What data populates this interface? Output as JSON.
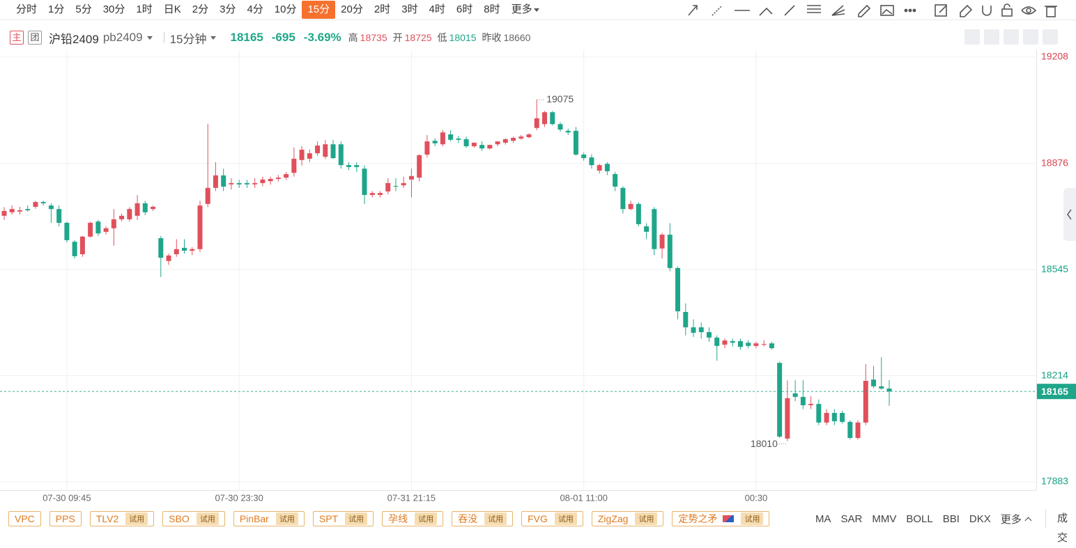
{
  "toolbar": {
    "periods": [
      "分时",
      "1分",
      "5分",
      "30分",
      "1时",
      "日K",
      "2分",
      "3分",
      "4分",
      "10分",
      "15分",
      "20分",
      "2时",
      "3时",
      "4时",
      "6时",
      "8时",
      "更多"
    ],
    "active": 10
  },
  "header": {
    "badges": [
      "主",
      "团"
    ],
    "name": "沪铅2409",
    "code": "pb2409",
    "period": "15分钟",
    "price": 18165,
    "change": -695,
    "change_pct": "-3.69%",
    "stats": [
      {
        "label": "高",
        "value": 18735
      },
      {
        "label": "开",
        "value": 18725
      },
      {
        "label": "低",
        "value": 18015
      }
    ],
    "prev_close_label": "昨收",
    "prev_close": 18660
  },
  "chart_data": {
    "type": "candlestick",
    "categories": [
      null,
      null,
      null,
      null,
      null,
      null,
      null,
      null,
      "07-30 09:45",
      null,
      null,
      null,
      null,
      null,
      null,
      null,
      null,
      null,
      null,
      null,
      null,
      null,
      null,
      null,
      null,
      null,
      null,
      null,
      null,
      null,
      "07-30 23:30",
      null,
      null,
      null,
      null,
      null,
      null,
      null,
      null,
      null,
      null,
      null,
      null,
      null,
      null,
      null,
      null,
      null,
      null,
      null,
      null,
      null,
      "07-31 21:15",
      null,
      null,
      null,
      null,
      null,
      null,
      null,
      null,
      null,
      null,
      null,
      null,
      null,
      null,
      null,
      null,
      null,
      null,
      null,
      null,
      null,
      "08-01 11:00",
      null,
      null,
      null,
      null,
      null,
      null,
      null,
      null,
      null,
      null,
      null,
      null,
      null,
      null,
      null,
      null,
      null,
      null,
      null,
      null,
      null,
      "00:30",
      null,
      null,
      null,
      null,
      null,
      null,
      null,
      null,
      null,
      null,
      null,
      null,
      null,
      null,
      null,
      null,
      null
    ],
    "open": [
      18713,
      18724,
      18726,
      18734,
      18741,
      18756,
      18745,
      18734,
      18691,
      18632,
      18593,
      18648,
      18695,
      18663,
      18674,
      18702,
      18702,
      18713,
      18752,
      18734,
      18643,
      18572,
      18593,
      18613,
      18604,
      18609,
      18750,
      18800,
      18839,
      18811,
      18815,
      18815,
      18811,
      18815,
      18821,
      18828,
      18832,
      18847,
      18887,
      18891,
      18908,
      18897,
      18936,
      18936,
      18871,
      18871,
      18860,
      18778,
      18778,
      18789,
      18806,
      18808,
      18826,
      18832,
      18904,
      18947,
      18936,
      18967,
      18954,
      18952,
      18930,
      18934,
      18923,
      18936,
      18941,
      18947,
      18954,
      18958,
      18987,
      18999,
      19036,
      18999,
      18978,
      18978,
      18904,
      18895,
      18854,
      18875,
      18843,
      18800,
      18734,
      18750,
      18680,
      18734,
      18611,
      18654,
      18550,
      18413,
      18365,
      18365,
      18350,
      18333,
      18311,
      18322,
      18322,
      18317,
      18307,
      18311,
      18315,
      18254,
      18018,
      18159,
      18148,
      18122,
      18126,
      18068,
      18098,
      18098,
      18070,
      18020,
      18068,
      18202,
      18181,
      18174
    ],
    "high": [
      18740,
      18745,
      18741,
      18745,
      18760,
      18760,
      18752,
      18745,
      18695,
      18637,
      18650,
      18695,
      18700,
      18680,
      18734,
      18720,
      18740,
      18778,
      18760,
      18745,
      18650,
      18595,
      18640,
      18640,
      18615,
      18760,
      19000,
      18880,
      18860,
      18830,
      18825,
      18825,
      18830,
      18835,
      18835,
      18840,
      18850,
      18926,
      18930,
      18920,
      18945,
      18950,
      18950,
      18945,
      18880,
      18880,
      18870,
      18790,
      18790,
      18830,
      18830,
      18835,
      18860,
      18905,
      18965,
      18955,
      18980,
      18980,
      18962,
      18960,
      18940,
      18945,
      18935,
      18945,
      18955,
      18960,
      18965,
      18970,
      19075,
      19040,
      19040,
      19005,
      18985,
      18990,
      18910,
      18905,
      18875,
      18880,
      18850,
      18805,
      18760,
      18755,
      18690,
      18740,
      18660,
      18690,
      18555,
      18440,
      18390,
      18380,
      18365,
      18340,
      18330,
      18330,
      18330,
      18325,
      18320,
      18325,
      18320,
      18258,
      18200,
      18200,
      18200,
      18150,
      18140,
      18110,
      18110,
      18105,
      18075,
      18075,
      18250,
      18245,
      18272,
      18200
    ],
    "low": [
      18700,
      18717,
      18717,
      18726,
      18735,
      18745,
      18691,
      18680,
      18630,
      18580,
      18585,
      18645,
      18650,
      18655,
      18620,
      18695,
      18695,
      18700,
      18715,
      18728,
      18522,
      18560,
      18585,
      18595,
      18590,
      18600,
      18740,
      18790,
      18790,
      18795,
      18800,
      18800,
      18800,
      18805,
      18810,
      18820,
      18825,
      18835,
      18870,
      18880,
      18900,
      18890,
      18890,
      18860,
      18855,
      18850,
      18750,
      18770,
      18770,
      18780,
      18790,
      18800,
      18771,
      18820,
      18895,
      18930,
      18930,
      18945,
      18940,
      18925,
      18925,
      18915,
      18920,
      18930,
      18935,
      18940,
      18950,
      18955,
      18980,
      18990,
      18995,
      18975,
      18965,
      18900,
      18885,
      18860,
      18845,
      18840,
      18790,
      18720,
      18730,
      18680,
      18640,
      18590,
      18580,
      18540,
      18390,
      18340,
      18335,
      18330,
      18320,
      18261,
      18300,
      18305,
      18295,
      18300,
      18300,
      18305,
      18295,
      18020,
      18010,
      18135,
      18110,
      18110,
      18060,
      18060,
      18060,
      18065,
      18015,
      18015,
      18060,
      18175,
      18170,
      18120
    ],
    "close": [
      18728,
      18734,
      18730,
      18730,
      18756,
      18752,
      18734,
      18691,
      18637,
      18587,
      18648,
      18691,
      18658,
      18674,
      18702,
      18713,
      18734,
      18752,
      18724,
      18741,
      18582,
      18589,
      18609,
      18604,
      18609,
      18745,
      18800,
      18839,
      18804,
      18815,
      18811,
      18811,
      18815,
      18826,
      18828,
      18832,
      18843,
      18891,
      18919,
      18908,
      18932,
      18936,
      18893,
      18871,
      18865,
      18865,
      18778,
      18784,
      18784,
      18815,
      18804,
      18815,
      18837,
      18902,
      18945,
      18939,
      18973,
      18950,
      18950,
      18930,
      18941,
      18923,
      18934,
      18945,
      18952,
      18956,
      18960,
      18967,
      19017,
      19036,
      18999,
      18982,
      18973,
      18904,
      18893,
      18871,
      18871,
      18852,
      18804,
      18734,
      18750,
      18687,
      18663,
      18609,
      18654,
      18550,
      18415,
      18365,
      18348,
      18350,
      18333,
      18307,
      18324,
      18317,
      18304,
      18307,
      18315,
      18313,
      18300,
      18024,
      18144,
      18148,
      18122,
      18126,
      18068,
      18098,
      18072,
      18070,
      18020,
      18068,
      18198,
      18181,
      18174,
      18165
    ],
    "ylim": [
      17883,
      19208
    ],
    "yticks": [
      17883,
      18214,
      18545,
      18876,
      19208
    ],
    "up_color": "#e0505c",
    "down_color": "#1fa68a",
    "grid": true,
    "last_price": 18165
  },
  "indicators": [
    {
      "name": "VPC"
    },
    {
      "name": "PPS"
    },
    {
      "name": "TLV2",
      "tag": "试用"
    },
    {
      "name": "SBO",
      "tag": "试用"
    },
    {
      "name": "PinBar",
      "tag": "试用"
    },
    {
      "name": "SPT",
      "tag": "试用"
    },
    {
      "name": "孕线",
      "tag": "试用"
    },
    {
      "name": "吞没",
      "tag": "试用"
    },
    {
      "name": "FVG",
      "tag": "试用"
    },
    {
      "name": "ZigZag",
      "tag": "试用"
    },
    {
      "name": "定势之矛",
      "tag": "试用"
    }
  ],
  "main_indicators": [
    "MA",
    "SAR",
    "MMV",
    "BOLL",
    "BBI",
    "DKX"
  ],
  "more": "更多",
  "volume": "成交"
}
